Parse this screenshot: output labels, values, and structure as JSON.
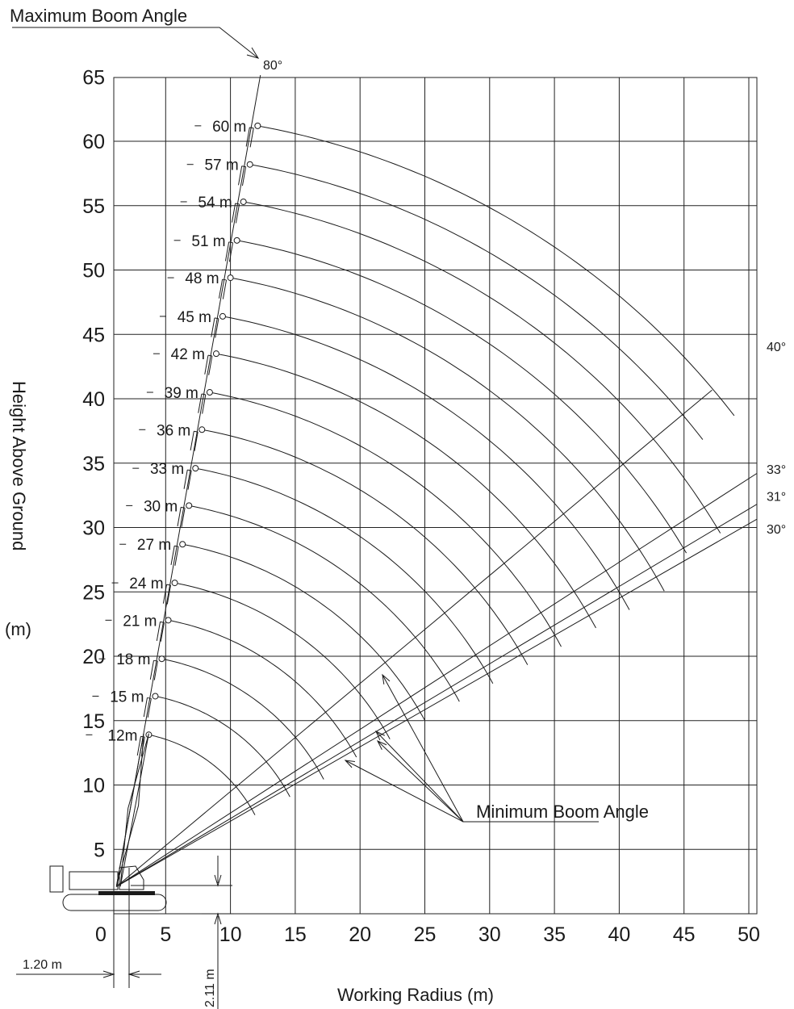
{
  "chart_data": {
    "type": "line",
    "title": "",
    "xlabel": "Working Radius (m)",
    "ylabel": "Height Above Ground",
    "ylabel_unit": "(m)",
    "xlim": [
      -1,
      50
    ],
    "ylim": [
      0,
      65
    ],
    "x_ticks": [
      0,
      5,
      10,
      15,
      20,
      25,
      30,
      35,
      40,
      45,
      50
    ],
    "y_ticks": [
      5,
      10,
      15,
      20,
      25,
      30,
      35,
      40,
      45,
      50,
      55,
      60,
      65
    ],
    "grid": true,
    "boom_pivot": {
      "radius": 1.2,
      "height": 2.11
    },
    "pivot_offset_label": "1.20 m",
    "pivot_height_label": "2.11 m",
    "max_boom_angle": {
      "label": "Maximum Boom Angle",
      "angle_deg": 80,
      "angle_label": "80°"
    },
    "min_boom_angle": {
      "label": "Minimum Boom Angle"
    },
    "angle_lines": [
      {
        "angle_deg": 40,
        "label": "40°"
      },
      {
        "angle_deg": 33,
        "label": "33°"
      },
      {
        "angle_deg": 31,
        "label": "31°"
      },
      {
        "angle_deg": 30,
        "label": "30°"
      }
    ],
    "booms": [
      {
        "label": "12m",
        "length": 12,
        "tip_at_80": {
          "radius": 3.7,
          "height": 13.9
        },
        "end_angle_deg": 30
      },
      {
        "label": "15 m",
        "length": 15,
        "tip_at_80": {
          "radius": 4.2,
          "height": 16.9
        },
        "end_angle_deg": 30
      },
      {
        "label": "18 m",
        "length": 18,
        "tip_at_80": {
          "radius": 4.7,
          "height": 19.8
        },
        "end_angle_deg": 30
      },
      {
        "label": "21 m",
        "length": 21,
        "tip_at_80": {
          "radius": 5.2,
          "height": 22.8
        },
        "end_angle_deg": 31
      },
      {
        "label": "24 m",
        "length": 24,
        "tip_at_80": {
          "radius": 5.7,
          "height": 25.7
        },
        "end_angle_deg": 31
      },
      {
        "label": "27 m",
        "length": 27,
        "tip_at_80": {
          "radius": 6.3,
          "height": 28.7
        },
        "end_angle_deg": 31
      },
      {
        "label": "30 m",
        "length": 30,
        "tip_at_80": {
          "radius": 6.8,
          "height": 31.7
        },
        "end_angle_deg": 31
      },
      {
        "label": "33 m",
        "length": 33,
        "tip_at_80": {
          "radius": 7.3,
          "height": 34.6
        },
        "end_angle_deg": 31
      },
      {
        "label": "36 m",
        "length": 36,
        "tip_at_80": {
          "radius": 7.8,
          "height": 37.6
        },
        "end_angle_deg": 31
      },
      {
        "label": "39 m",
        "length": 39,
        "tip_at_80": {
          "radius": 8.4,
          "height": 40.5
        },
        "end_angle_deg": 31
      },
      {
        "label": "42 m",
        "length": 42,
        "tip_at_80": {
          "radius": 8.9,
          "height": 43.5
        },
        "end_angle_deg": 31
      },
      {
        "label": "45 m",
        "length": 45,
        "tip_at_80": {
          "radius": 9.4,
          "height": 46.4
        },
        "end_angle_deg": 31
      },
      {
        "label": "48 m",
        "length": 48,
        "tip_at_80": {
          "radius": 10.0,
          "height": 49.4
        },
        "end_angle_deg": 31
      },
      {
        "label": "51 m",
        "length": 51,
        "tip_at_80": {
          "radius": 10.5,
          "height": 52.3
        },
        "end_angle_deg": 33
      },
      {
        "label": "54 m",
        "length": 54,
        "tip_at_80": {
          "radius": 11.0,
          "height": 55.3
        },
        "end_angle_deg": 33
      },
      {
        "label": "57 m",
        "length": 57,
        "tip_at_80": {
          "radius": 11.5,
          "height": 58.2
        },
        "end_angle_deg": 40
      },
      {
        "label": "60 m",
        "length": 60,
        "tip_at_80": {
          "radius": 12.1,
          "height": 61.2
        },
        "end_angle_deg": 40
      }
    ]
  }
}
